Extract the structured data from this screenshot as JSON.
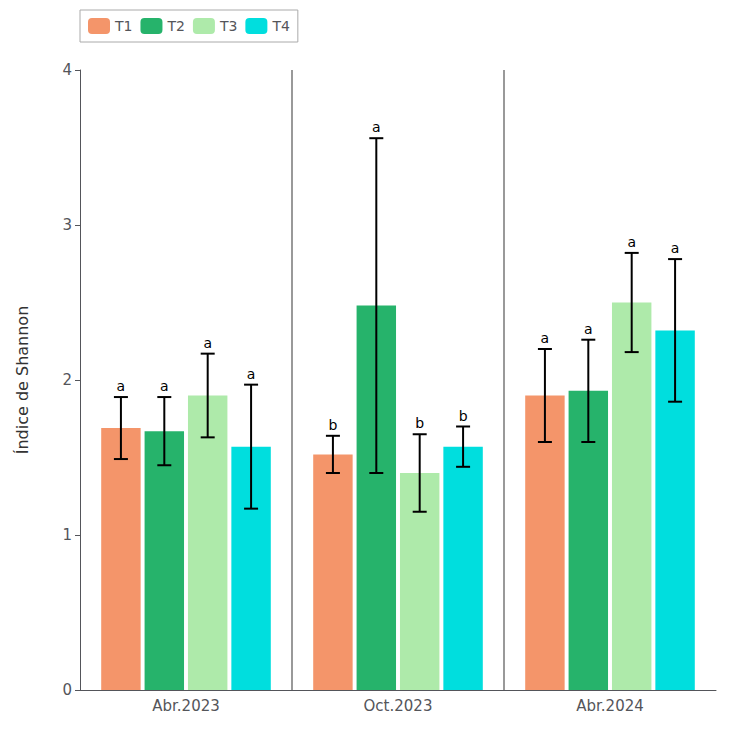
{
  "chart_data": {
    "type": "bar",
    "categories": [
      "Abr.2023",
      "Oct.2023",
      "Abr.2024"
    ],
    "series": [
      {
        "name": "T1",
        "color": "#F4956A",
        "values": [
          1.69,
          1.52,
          1.9
        ],
        "errors": [
          0.2,
          0.12,
          0.3
        ],
        "significance": [
          "a",
          "b",
          "a"
        ]
      },
      {
        "name": "T2",
        "color": "#26B36B",
        "values": [
          1.67,
          2.48,
          1.93
        ],
        "errors": [
          0.22,
          1.08,
          0.33
        ],
        "significance": [
          "a",
          "a",
          "a"
        ]
      },
      {
        "name": "T3",
        "color": "#AEEAAA",
        "values": [
          1.9,
          1.4,
          2.5
        ],
        "errors": [
          0.27,
          0.25,
          0.32
        ],
        "significance": [
          "a",
          "b",
          "a"
        ]
      },
      {
        "name": "T4",
        "color": "#00DEDE",
        "values": [
          1.57,
          1.57,
          2.32
        ],
        "errors": [
          0.4,
          0.13,
          0.46
        ],
        "significance": [
          "a",
          "b",
          "a"
        ]
      }
    ],
    "ylabel": "Índice de Shannon",
    "ylim": [
      0,
      4
    ],
    "yticks": [
      0,
      1,
      2,
      3,
      4
    ],
    "grid": false,
    "legend": "upper left"
  }
}
